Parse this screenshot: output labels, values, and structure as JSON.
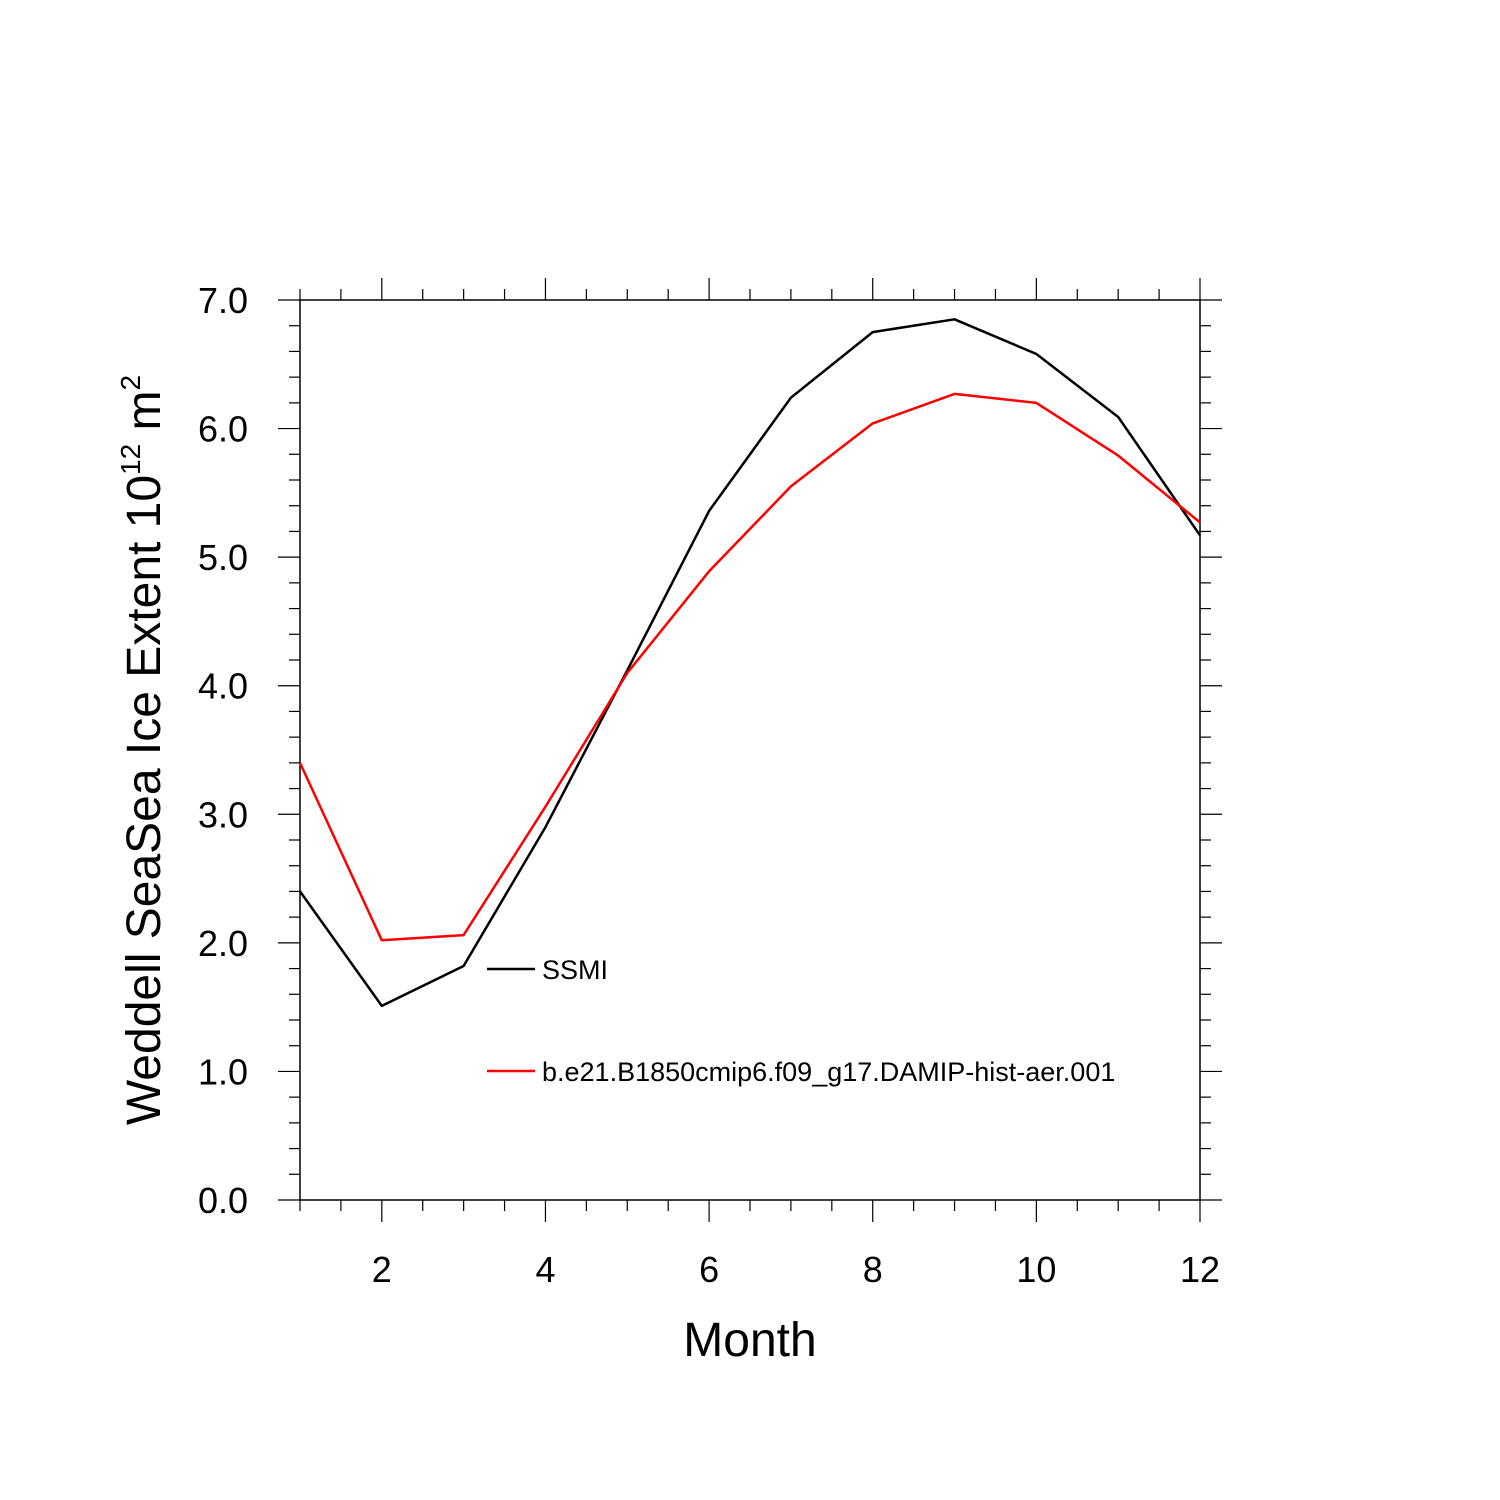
{
  "chart_data": {
    "type": "line",
    "xlabel": "Month",
    "ylabel": "Weddell SeaSea Ice Extent 10",
    "ylabel_exponent": "12",
    "ylabel_unit": " m",
    "ylabel_unit_exponent": "2",
    "xlim": [
      1,
      12
    ],
    "ylim": [
      0,
      7
    ],
    "x_major_ticks": [
      2,
      4,
      6,
      8,
      10,
      12
    ],
    "x_tick_labels": [
      "2",
      "4",
      "6",
      "8",
      "10",
      "12"
    ],
    "y_major_ticks": [
      0,
      1,
      2,
      3,
      4,
      5,
      6,
      7
    ],
    "y_tick_labels": [
      "0.0",
      "1.0",
      "2.0",
      "3.0",
      "4.0",
      "5.0",
      "6.0",
      "7.0"
    ],
    "grid": false,
    "legend_placement": "inside-bottom-center",
    "x": [
      1,
      2,
      3,
      4,
      5,
      6,
      7,
      8,
      9,
      10,
      11,
      12
    ],
    "series": [
      {
        "name": "SSMI",
        "color": "#000000",
        "values": [
          2.4,
          1.51,
          1.82,
          2.9,
          4.12,
          5.36,
          6.24,
          6.75,
          6.85,
          6.58,
          6.09,
          5.17
        ]
      },
      {
        "name": "b.e21.B1850cmip6.f09_g17.DAMIP-hist-aer.001",
        "color": "#ff0000",
        "values": [
          3.4,
          2.02,
          2.06,
          3.06,
          4.1,
          4.89,
          5.55,
          6.04,
          6.27,
          6.2,
          5.79,
          5.27
        ]
      }
    ]
  }
}
